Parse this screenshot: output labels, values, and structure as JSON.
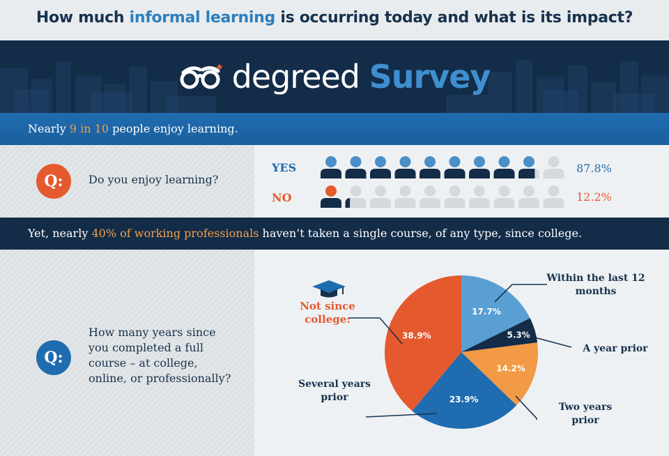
{
  "header": {
    "title_before": "How much ",
    "title_highlight": "informal learning",
    "title_after": " is occurring today and what is its impact?"
  },
  "banner": {
    "brand": "degreed",
    "product": "Survey",
    "logo_icon": "glasses-icon",
    "colors": {
      "navy": "#132c48",
      "blue": "#3e8fd0"
    }
  },
  "strip1": {
    "before": "Nearly ",
    "highlight": "9 in 10",
    "after": " people enjoy learning."
  },
  "question1": {
    "badge": "Q:",
    "text": "Do you enjoy learning?",
    "icon": "person-icon",
    "answers": [
      {
        "label": "YES",
        "percent": "87.8%",
        "value": 87.8,
        "color": "#4a8fc8"
      },
      {
        "label": "NO",
        "percent": "12.2%",
        "value": 12.2,
        "color": "#e4592e"
      }
    ]
  },
  "strip2": {
    "before": "Yet, nearly ",
    "highlight": "40% of working professionals",
    "after": " haven’t taken a single course, of any type, since college."
  },
  "question2": {
    "badge": "Q:",
    "line1": "How many years since",
    "line2": "you completed a full",
    "line3": "course – at college,",
    "line4": "online, or professionally?"
  },
  "chart_data": {
    "type": "pie",
    "slices": [
      {
        "label": "Within the last 12 months",
        "value": 17.7,
        "display": "17.7%",
        "color": "#5a9fd4"
      },
      {
        "label": "A year prior",
        "value": 5.3,
        "display": "5.3%",
        "color": "#132c48"
      },
      {
        "label": "Two years prior",
        "value": 14.2,
        "display": "14.2%",
        "color": "#f29a45"
      },
      {
        "label": "Several years prior",
        "value": 23.9,
        "display": "23.9%",
        "color": "#1f6cb0"
      },
      {
        "label": "Not since college:",
        "value": 38.9,
        "display": "38.9%",
        "color": "#e4592e"
      }
    ],
    "callouts": {
      "within_line1": "Within the last 12",
      "within_line2": "months",
      "year_prior": "A year prior",
      "two_line1": "Two years",
      "two_line2": "prior",
      "several_line1": "Several years",
      "several_line2": "prior",
      "not_line1": "Not since",
      "not_line2": "college:"
    }
  }
}
